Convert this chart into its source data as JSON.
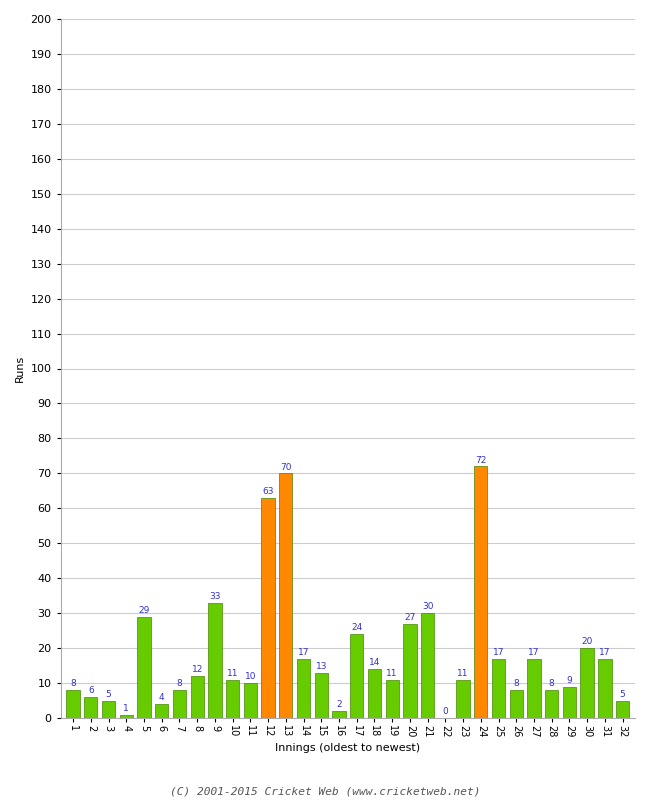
{
  "innings": [
    1,
    2,
    3,
    4,
    5,
    6,
    7,
    8,
    9,
    10,
    11,
    12,
    13,
    14,
    15,
    16,
    17,
    18,
    19,
    20,
    21,
    22,
    23,
    24,
    25,
    26,
    27,
    28,
    29,
    30,
    31,
    32
  ],
  "runs": [
    8,
    6,
    5,
    1,
    29,
    4,
    8,
    12,
    33,
    11,
    10,
    63,
    70,
    17,
    13,
    2,
    24,
    14,
    11,
    27,
    30,
    0,
    11,
    72,
    17,
    8,
    17,
    8,
    9,
    20,
    17,
    5
  ],
  "colors": [
    "#66cc00",
    "#66cc00",
    "#66cc00",
    "#66cc00",
    "#66cc00",
    "#66cc00",
    "#66cc00",
    "#66cc00",
    "#66cc00",
    "#66cc00",
    "#66cc00",
    "#ff8800",
    "#ff8800",
    "#66cc00",
    "#66cc00",
    "#66cc00",
    "#66cc00",
    "#66cc00",
    "#66cc00",
    "#66cc00",
    "#66cc00",
    "#66cc00",
    "#66cc00",
    "#ff8800",
    "#66cc00",
    "#66cc00",
    "#66cc00",
    "#66cc00",
    "#66cc00",
    "#66cc00",
    "#66cc00",
    "#66cc00"
  ],
  "ylabel": "Runs",
  "xlabel": "Innings (oldest to newest)",
  "ylim": [
    0,
    200
  ],
  "yticks": [
    0,
    10,
    20,
    30,
    40,
    50,
    60,
    70,
    80,
    90,
    100,
    110,
    120,
    130,
    140,
    150,
    160,
    170,
    180,
    190,
    200
  ],
  "footer": "(C) 2001-2015 Cricket Web (www.cricketweb.net)",
  "label_color": "#3333cc",
  "bar_edge_color": "#448800",
  "background_color": "#ffffff",
  "grid_color": "#cccccc"
}
